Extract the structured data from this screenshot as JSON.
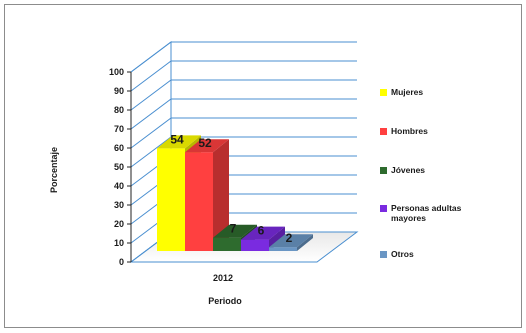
{
  "chart_data": {
    "type": "bar",
    "categories": [
      "2012"
    ],
    "series": [
      {
        "name": "Mujeres",
        "values": [
          54
        ],
        "color": "#ffff00"
      },
      {
        "name": "Hombres",
        "values": [
          52
        ],
        "color": "#ff4040"
      },
      {
        "name": "Jóvenes",
        "values": [
          7
        ],
        "color": "#2e6b2e"
      },
      {
        "name": "Personas adultas mayores",
        "values": [
          6
        ],
        "color": "#7a2be0"
      },
      {
        "name": "Otros",
        "values": [
          2
        ],
        "color": "#6a96c4"
      }
    ],
    "xlabel": "Periodo",
    "ylabel": "Porcentaje",
    "ylim": [
      0,
      100
    ],
    "yticks": [
      0,
      10,
      20,
      30,
      40,
      50,
      60,
      70,
      80,
      90,
      100
    ],
    "grid": true,
    "legend_position": "right",
    "three_d": true
  }
}
